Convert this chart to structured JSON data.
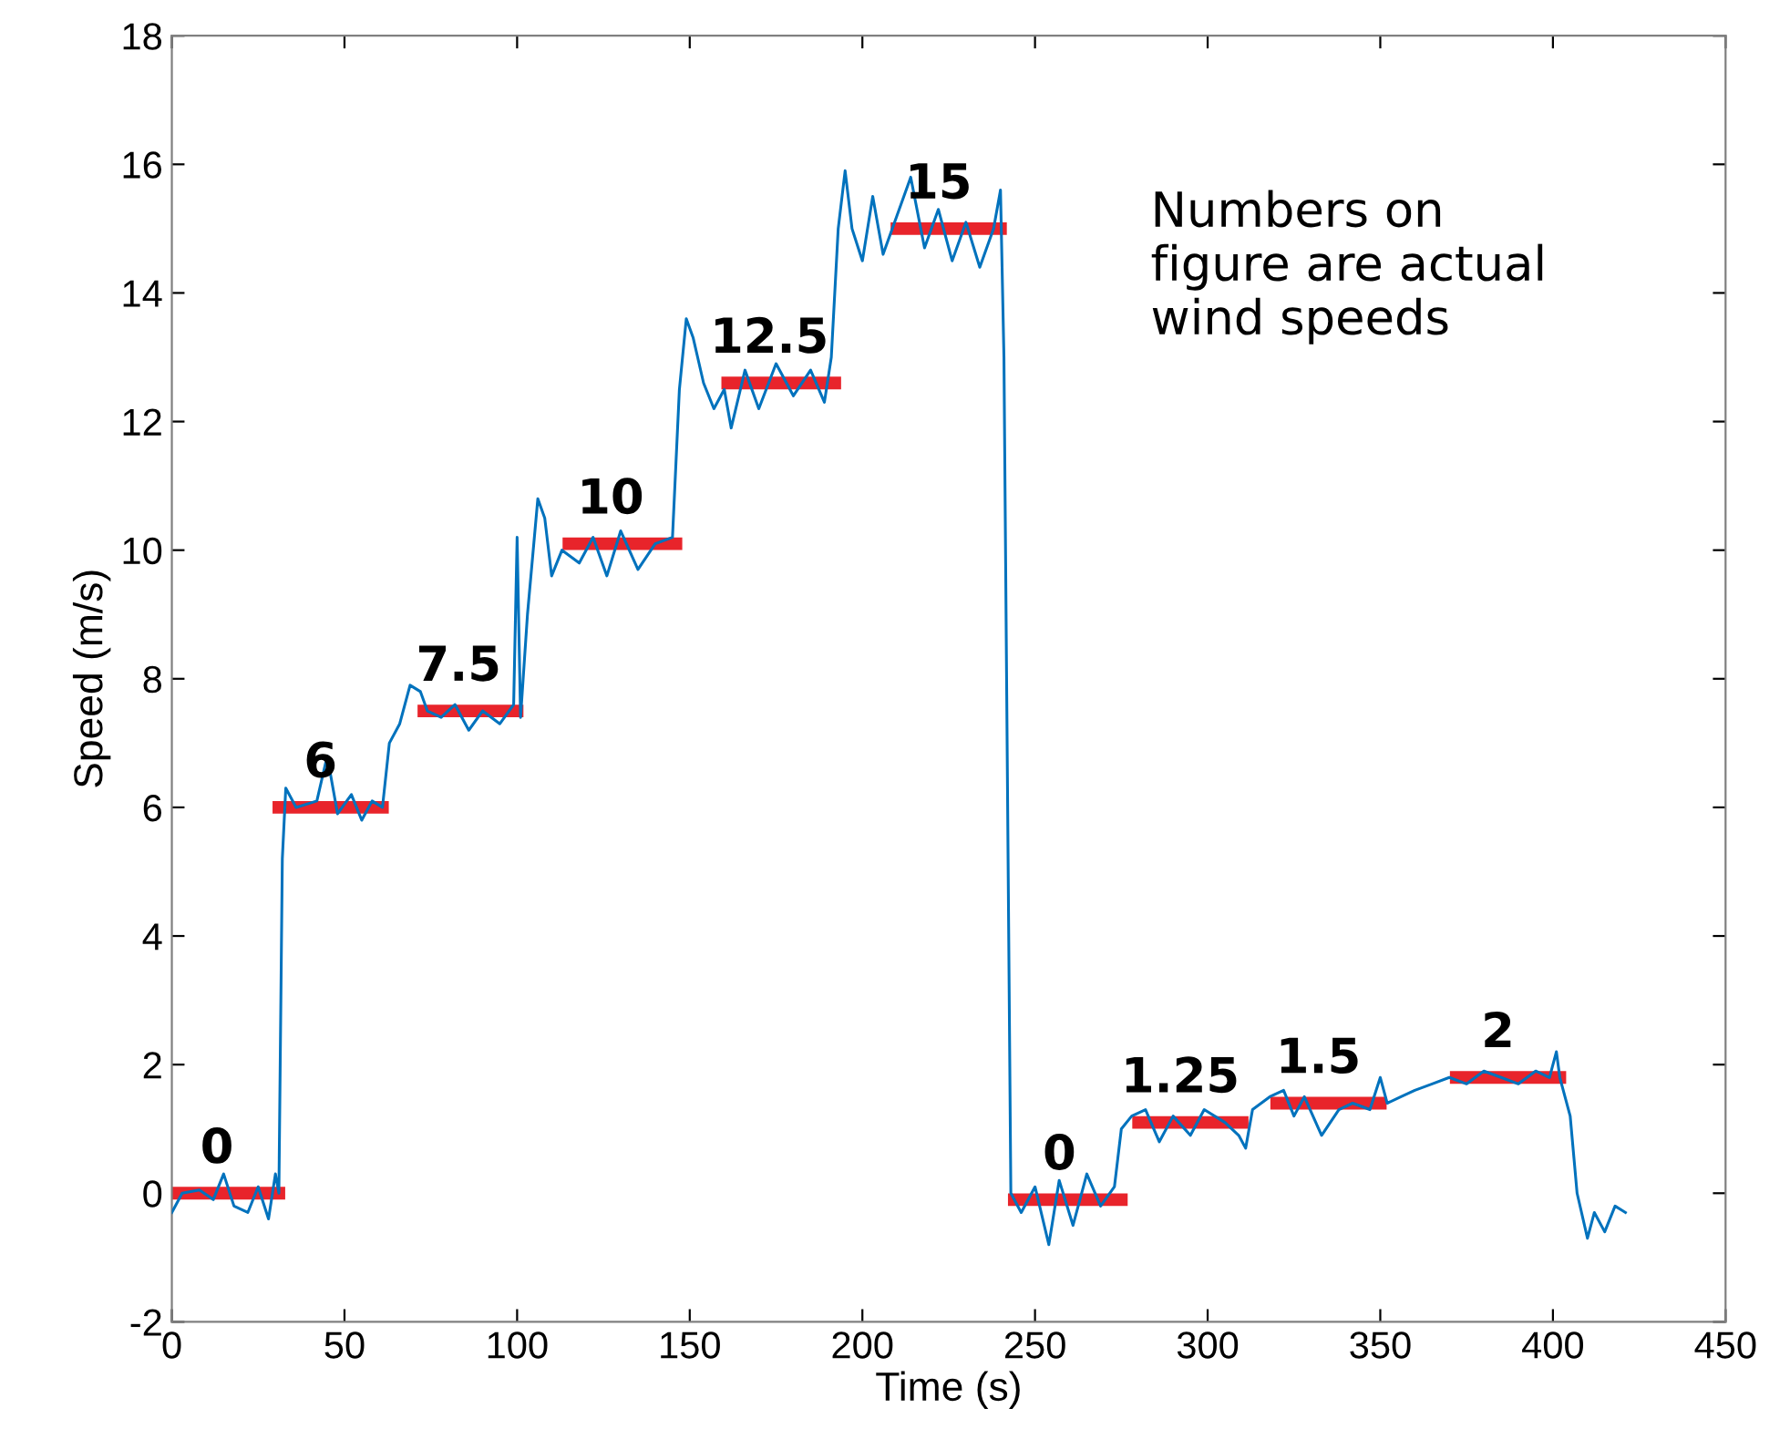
{
  "chart_data": {
    "type": "line",
    "xlabel": "Time (s)",
    "ylabel": "Speed (m/s)",
    "xlim": [
      0,
      450
    ],
    "ylim": [
      -2,
      18
    ],
    "xticks": [
      0,
      50,
      100,
      150,
      200,
      250,
      300,
      350,
      400,
      450
    ],
    "yticks": [
      -2,
      0,
      2,
      4,
      6,
      8,
      10,
      12,
      14,
      16,
      18
    ],
    "grid": false,
    "legend": false,
    "series": [
      {
        "color": "#0072bd",
        "x": [
          0,
          3,
          8,
          12,
          15,
          18,
          22,
          25,
          28,
          30,
          31,
          32,
          33,
          36,
          42,
          45,
          48,
          52,
          55,
          58,
          61,
          63,
          66,
          69,
          72,
          74,
          78,
          82,
          86,
          90,
          95,
          99,
          100,
          101,
          103,
          106,
          108,
          110,
          113,
          118,
          122,
          126,
          130,
          135,
          140,
          145,
          147,
          149,
          151,
          154,
          157,
          160,
          162,
          166,
          170,
          175,
          180,
          185,
          189,
          191,
          193,
          195,
          197,
          200,
          203,
          206,
          210,
          214,
          218,
          222,
          226,
          230,
          234,
          238,
          240,
          241,
          243,
          246,
          250,
          254,
          257,
          261,
          265,
          269,
          273,
          275,
          278,
          282,
          286,
          290,
          295,
          299,
          305,
          309,
          311,
          313,
          318,
          322,
          325,
          328,
          333,
          338,
          342,
          347,
          350,
          352,
          356,
          360,
          365,
          370,
          375,
          380,
          385,
          390,
          395,
          399,
          401,
          402,
          405,
          407,
          410,
          412,
          415,
          418,
          421
        ],
        "values": [
          -0.3,
          0,
          0.05,
          -0.1,
          0.3,
          -0.2,
          -0.3,
          0.1,
          -0.4,
          0.3,
          0,
          5.2,
          6.3,
          6.0,
          6.1,
          6.8,
          5.9,
          6.2,
          5.8,
          6.1,
          6.0,
          7.0,
          7.3,
          7.9,
          7.8,
          7.5,
          7.4,
          7.6,
          7.2,
          7.5,
          7.3,
          7.6,
          10.2,
          7.4,
          9.0,
          10.8,
          10.5,
          9.6,
          10.0,
          9.8,
          10.2,
          9.6,
          10.3,
          9.7,
          10.1,
          10.2,
          12.5,
          13.6,
          13.3,
          12.6,
          12.2,
          12.5,
          11.9,
          12.8,
          12.2,
          12.9,
          12.4,
          12.8,
          12.3,
          13.0,
          15.0,
          15.9,
          15.0,
          14.5,
          15.5,
          14.6,
          15.2,
          15.8,
          14.7,
          15.3,
          14.5,
          15.1,
          14.4,
          15.0,
          15.6,
          13,
          0,
          -0.3,
          0.1,
          -0.8,
          0.2,
          -0.5,
          0.3,
          -0.2,
          0.1,
          1.0,
          1.2,
          1.3,
          0.8,
          1.2,
          0.9,
          1.3,
          1.1,
          0.9,
          0.7,
          1.3,
          1.5,
          1.6,
          1.2,
          1.5,
          0.9,
          1.3,
          1.4,
          1.3,
          1.8,
          1.4,
          1.5,
          1.6,
          1.7,
          1.8,
          1.7,
          1.9,
          1.8,
          1.7,
          1.9,
          1.8,
          2.2,
          1.8,
          1.2,
          0,
          -0.7,
          -0.3,
          -0.6,
          -0.2,
          -0.3
        ]
      },
      {
        "color": "#e8242b",
        "x": [
          0,
          31
        ],
        "values": [
          0,
          0
        ]
      },
      {
        "color": "#e8242b",
        "x": [
          31,
          61
        ],
        "values": [
          6,
          6
        ]
      },
      {
        "color": "#e8242b",
        "x": [
          73,
          100
        ],
        "values": [
          7.5,
          7.5
        ]
      },
      {
        "color": "#e8242b",
        "x": [
          115,
          146
        ],
        "values": [
          10.1,
          10.1
        ]
      },
      {
        "color": "#e8242b",
        "x": [
          161,
          192
        ],
        "values": [
          12.6,
          12.6
        ]
      },
      {
        "color": "#e8242b",
        "x": [
          210,
          240
        ],
        "values": [
          15,
          15
        ]
      },
      {
        "color": "#e8242b",
        "x": [
          244,
          275
        ],
        "values": [
          -0.1,
          -0.1
        ]
      },
      {
        "color": "#e8242b",
        "x": [
          280,
          310
        ],
        "values": [
          1.1,
          1.1
        ]
      },
      {
        "color": "#e8242b",
        "x": [
          320,
          350
        ],
        "values": [
          1.4,
          1.4
        ]
      },
      {
        "color": "#e8242b",
        "x": [
          372,
          402
        ],
        "values": [
          1.8,
          1.8
        ]
      }
    ],
    "annotations": [
      {
        "text": "0",
        "x": 16,
        "y": 0
      },
      {
        "text": "6",
        "x": 46,
        "y": 6
      },
      {
        "text": "7.5",
        "x": 86,
        "y": 7.5
      },
      {
        "text": "10",
        "x": 130,
        "y": 10.1
      },
      {
        "text": "12.5",
        "x": 176,
        "y": 12.6
      },
      {
        "text": "15",
        "x": 225,
        "y": 15
      },
      {
        "text": "0",
        "x": 260,
        "y": -0.1
      },
      {
        "text": "1.25",
        "x": 295,
        "y": 1.1
      },
      {
        "text": "1.5",
        "x": 335,
        "y": 1.4
      },
      {
        "text": "2",
        "x": 387,
        "y": 1.8
      },
      "Numbers on\nfigure are actual\nwind speeds"
    ]
  }
}
